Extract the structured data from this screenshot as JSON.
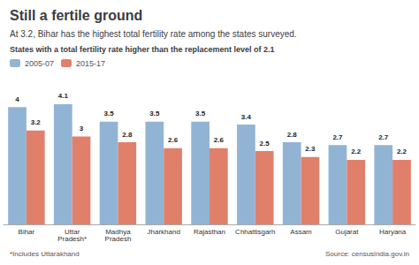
{
  "chart_data": {
    "type": "bar",
    "title": "Still a fertile ground",
    "subtitle": "At 3.2, Bihar has the highest total fertility rate among the states surveyed.",
    "legend_title": "States with a total fertility rate higher than the replacement level of 2.1",
    "categories": [
      "Bihar",
      "Uttar\nPradesh*",
      "Madhya\nPradesh",
      "Jharkhand",
      "Rajasthan",
      "Chhattisgarh",
      "Assam",
      "Gujarat",
      "Haryana"
    ],
    "series": [
      {
        "name": "2005-07",
        "color": "#92b4d4",
        "values": [
          4.0,
          4.1,
          3.5,
          3.5,
          3.5,
          3.4,
          2.8,
          2.7,
          2.7
        ]
      },
      {
        "name": "2015-17",
        "color": "#e0806a",
        "values": [
          3.2,
          3.0,
          2.8,
          2.6,
          2.6,
          2.5,
          2.3,
          2.2,
          2.2
        ]
      }
    ],
    "ylim": [
      0,
      5.0
    ],
    "grid": false,
    "legend": "upper left",
    "data_labels": true,
    "tick_labels": "x",
    "footnote": "*Includes Uttarakhand",
    "source": "Source: censusindia.gov.in"
  }
}
